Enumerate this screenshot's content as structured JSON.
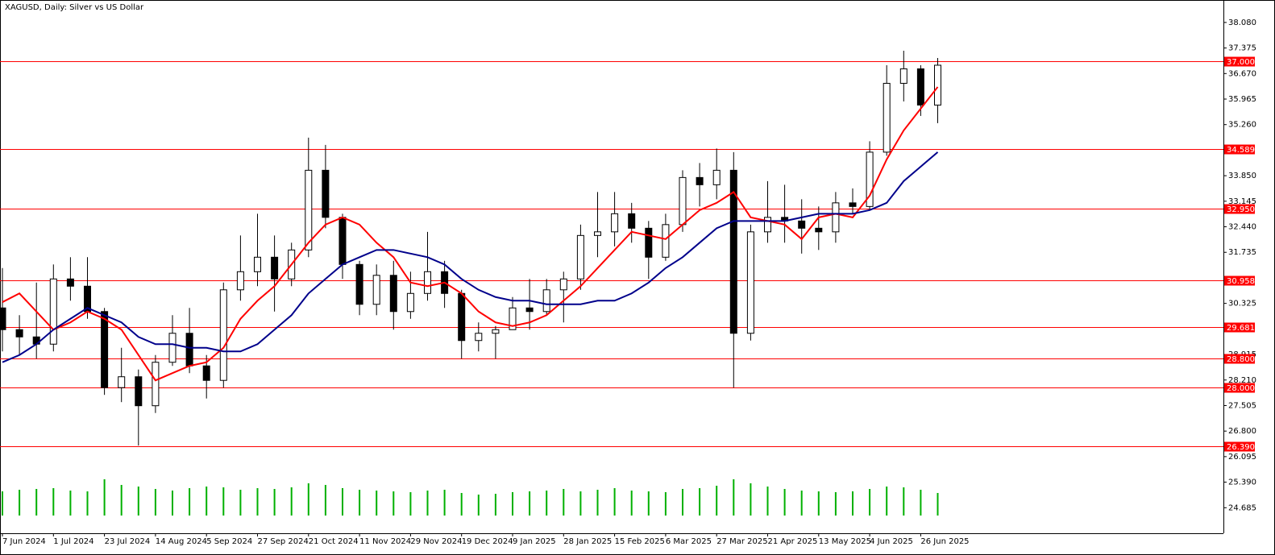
{
  "chart_data": {
    "type": "candlestick",
    "title": "XAGUSD, Daily:  Silver vs US Dollar",
    "categories": [
      "7 Jun 2024",
      null,
      null,
      "1 Jul 2024",
      null,
      null,
      "23 Jul 2024",
      null,
      null,
      "14 Aug 2024",
      null,
      null,
      "5 Sep 2024",
      null,
      null,
      "27 Sep 2024",
      null,
      null,
      "21 Oct 2024",
      null,
      null,
      "11 Nov 2024",
      null,
      null,
      "29 Nov 2024",
      null,
      null,
      "19 Dec 2024",
      null,
      null,
      "9 Jan 2025",
      null,
      null,
      "28 Jan 2025",
      null,
      null,
      "15 Feb 2025",
      null,
      null,
      "6 Mar 2025",
      null,
      null,
      "27 Mar 2025",
      null,
      null,
      "21 Apr 2025",
      null,
      null,
      "13 May 2025",
      null,
      null,
      "4 Jun 2025",
      null,
      null,
      "26 Jun 2025",
      null
    ],
    "open": [
      30.2,
      29.6,
      29.4,
      29.2,
      31.0,
      30.8,
      30.1,
      28.0,
      28.3,
      27.5,
      28.7,
      29.5,
      28.6,
      28.2,
      30.7,
      31.2,
      31.6,
      31.0,
      31.8,
      34.0,
      32.7,
      31.4,
      30.3,
      31.1,
      30.1,
      30.6,
      31.2,
      30.6,
      29.3,
      29.5,
      29.6,
      30.2,
      30.1,
      30.7,
      31.0,
      32.2,
      32.3,
      32.8,
      32.4,
      31.6,
      32.5,
      33.8,
      33.6,
      34.0,
      29.5,
      32.3,
      32.7,
      32.6,
      32.4,
      32.3,
      33.1,
      33.0,
      34.5,
      36.4,
      36.8,
      35.8
    ],
    "high": [
      31.3,
      30.0,
      30.9,
      31.4,
      31.6,
      31.6,
      30.2,
      29.1,
      28.5,
      28.9,
      30.0,
      30.2,
      28.9,
      30.9,
      32.2,
      32.8,
      32.2,
      32.0,
      34.9,
      34.7,
      32.8,
      31.5,
      31.4,
      31.5,
      31.2,
      32.3,
      31.5,
      30.7,
      29.8,
      29.7,
      30.5,
      31.0,
      31.0,
      31.2,
      32.5,
      33.4,
      33.4,
      33.1,
      32.6,
      32.8,
      34.0,
      34.2,
      34.6,
      34.5,
      32.5,
      33.7,
      33.6,
      33.2,
      33.0,
      33.4,
      33.5,
      34.8,
      36.9,
      37.3,
      36.9,
      37.1
    ],
    "low": [
      29.0,
      28.9,
      28.8,
      29.0,
      30.4,
      29.9,
      27.8,
      27.6,
      26.4,
      27.3,
      28.6,
      28.4,
      27.7,
      28.0,
      30.4,
      30.8,
      30.1,
      30.8,
      31.6,
      32.4,
      31.0,
      30.0,
      30.0,
      29.6,
      29.9,
      30.4,
      30.2,
      28.8,
      29.0,
      28.8,
      29.6,
      29.6,
      30.0,
      29.8,
      30.7,
      31.6,
      31.9,
      32.0,
      31.0,
      31.5,
      32.3,
      33.0,
      33.2,
      28.0,
      29.3,
      32.0,
      32.0,
      31.7,
      31.8,
      32.0,
      32.8,
      32.9,
      34.4,
      35.9,
      35.5,
      35.3
    ],
    "close": [
      29.6,
      29.4,
      29.2,
      31.0,
      30.8,
      30.1,
      28.0,
      28.3,
      27.5,
      28.7,
      29.5,
      28.6,
      28.2,
      30.7,
      31.2,
      31.6,
      31.0,
      31.8,
      34.0,
      32.7,
      31.4,
      30.3,
      31.1,
      30.1,
      30.6,
      31.2,
      30.6,
      29.3,
      29.5,
      29.6,
      30.2,
      30.1,
      30.7,
      31.0,
      32.2,
      32.3,
      32.8,
      32.4,
      31.6,
      32.5,
      33.8,
      33.6,
      34.0,
      29.5,
      32.3,
      32.7,
      32.6,
      32.4,
      32.3,
      33.1,
      33.0,
      34.5,
      36.4,
      36.8,
      35.8,
      36.9
    ],
    "candle_color": "#000000",
    "overlays": [
      {
        "color": "#ff0000",
        "values": [
          30.36,
          30.6,
          30.1,
          29.6,
          29.8,
          30.1,
          29.9,
          29.6,
          28.9,
          28.2,
          28.4,
          28.6,
          28.7,
          29.1,
          29.9,
          30.4,
          30.8,
          31.4,
          32.0,
          32.5,
          32.7,
          32.5,
          32.0,
          31.6,
          30.9,
          30.8,
          30.9,
          30.6,
          30.1,
          29.8,
          29.7,
          29.8,
          30.0,
          30.4,
          30.8,
          31.3,
          31.8,
          32.3,
          32.2,
          32.1,
          32.5,
          32.9,
          33.1,
          33.4,
          32.7,
          32.6,
          32.5,
          32.1,
          32.7,
          32.8,
          32.7,
          33.3,
          34.3,
          35.1,
          35.7,
          36.3
        ]
      },
      {
        "color": "#00008b",
        "values": [
          28.7,
          28.9,
          29.2,
          29.6,
          29.9,
          30.2,
          30.0,
          29.8,
          29.4,
          29.2,
          29.2,
          29.1,
          29.1,
          29.0,
          29.0,
          29.2,
          29.6,
          30.0,
          30.6,
          31.0,
          31.4,
          31.6,
          31.8,
          31.8,
          31.7,
          31.6,
          31.4,
          31.0,
          30.7,
          30.5,
          30.4,
          30.4,
          30.3,
          30.3,
          30.3,
          30.4,
          30.4,
          30.6,
          30.9,
          31.3,
          31.6,
          32.0,
          32.4,
          32.6,
          32.6,
          32.6,
          32.6,
          32.7,
          32.8,
          32.8,
          32.8,
          32.9,
          33.1,
          33.7,
          34.1,
          34.5
        ]
      }
    ],
    "volume": [
      30,
      32,
      33,
      34,
      31,
      30,
      45,
      38,
      36,
      33,
      31,
      34,
      36,
      35,
      32,
      34,
      33,
      35,
      40,
      38,
      34,
      32,
      31,
      30,
      29,
      31,
      32,
      28,
      26,
      27,
      29,
      30,
      31,
      33,
      30,
      32,
      34,
      31,
      30,
      29,
      33,
      34,
      37,
      45,
      40,
      36,
      33,
      31,
      30,
      29,
      30,
      33,
      36,
      35,
      32,
      28
    ],
    "volume_color": "#00b000",
    "levels": [
      {
        "value": 37.0,
        "label": "37.000"
      },
      {
        "value": 34.589,
        "label": "34.589"
      },
      {
        "value": 32.95,
        "label": "32.950"
      },
      {
        "value": 30.958,
        "label": "30.958"
      },
      {
        "value": 29.681,
        "label": "29.681"
      },
      {
        "value": 28.8,
        "label": "28.800"
      },
      {
        "value": 28.0,
        "label": "28.000"
      },
      {
        "value": 26.39,
        "label": "26.390"
      }
    ],
    "level_color": "#ff0000",
    "ylim": [
      23.98,
      38.7
    ],
    "yticks": [
      {
        "value": 38.08,
        "label": "38.080"
      },
      {
        "value": 37.375,
        "label": "37.375"
      },
      {
        "value": 36.67,
        "label": "36.670"
      },
      {
        "value": 35.965,
        "label": "35.965"
      },
      {
        "value": 35.26,
        "label": "35.260"
      },
      {
        "value": 33.85,
        "label": "33.850"
      },
      {
        "value": 33.145,
        "label": "33.145"
      },
      {
        "value": 32.44,
        "label": "32.440"
      },
      {
        "value": 31.735,
        "label": "31.735"
      },
      {
        "value": 30.325,
        "label": "30.325"
      },
      {
        "value": 28.915,
        "label": "28.915"
      },
      {
        "value": 28.21,
        "label": "28.210"
      },
      {
        "value": 27.505,
        "label": "27.505"
      },
      {
        "value": 26.8,
        "label": "26.800"
      },
      {
        "value": 26.095,
        "label": "26.095"
      },
      {
        "value": 25.39,
        "label": "25.390"
      },
      {
        "value": 24.685,
        "label": "24.685"
      }
    ],
    "grid": false
  }
}
